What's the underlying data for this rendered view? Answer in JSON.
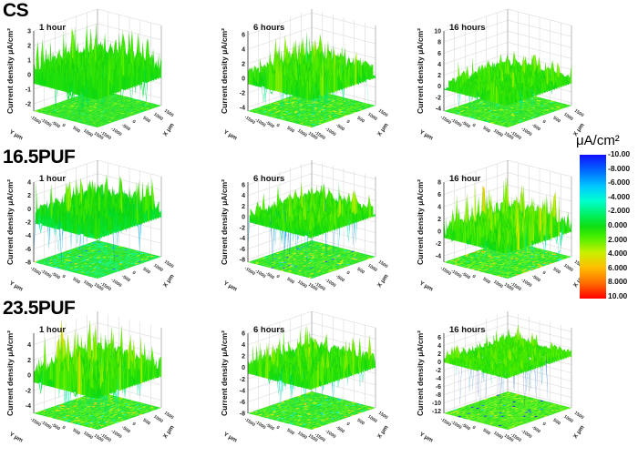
{
  "row_labels": [
    "CS",
    "16.5PUF",
    "23.5PUF"
  ],
  "colorbar": {
    "unit": "μA/cm²",
    "ticks": [
      "-10.00",
      "-8.000",
      "-6.000",
      "-4.000",
      "-2.000",
      "0.000",
      "2.000",
      "4.000",
      "6.000",
      "8.000",
      "10.00"
    ],
    "colors": {
      "min": "#1010ff",
      "zero": "#10dd10",
      "max": "#ff0000"
    }
  },
  "chart_data": {
    "type": "surface",
    "grid": true,
    "colorscale_range": [
      -10,
      10
    ],
    "panels": [
      {
        "row": "CS",
        "title": "1 hour",
        "zlabel": "Current density  μA/cm²",
        "xlabel": "X μm",
        "ylabel": "Y μm",
        "zticks": [
          "3",
          "2",
          "1",
          "0",
          "-1",
          "-2"
        ],
        "zlim": [
          -2.5,
          3
        ],
        "xticks": [
          "1500",
          "1000",
          "500",
          "0",
          "-500",
          "-1000",
          "-1500"
        ],
        "yticks": [
          "-1500",
          "-1000",
          "-500",
          "0",
          "500",
          "1000",
          "1500"
        ]
      },
      {
        "row": "CS",
        "title": "6 hours",
        "zlabel": "Current density  μA/cm²",
        "xlabel": "X μm",
        "ylabel": "Y μm",
        "zticks": [
          "6",
          "4",
          "2",
          "0",
          "-2",
          "-4"
        ],
        "zlim": [
          -4.5,
          6.5
        ],
        "xticks": [
          "1500",
          "1000",
          "500",
          "0",
          "-500",
          "-1000",
          "-1500"
        ],
        "yticks": [
          "-1500",
          "-1000",
          "-500",
          "0",
          "500",
          "1000",
          "1500"
        ]
      },
      {
        "row": "CS",
        "title": "16 hours",
        "zlabel": "Current density  μA/cm²",
        "xlabel": "X μm",
        "ylabel": "Y μm",
        "zticks": [
          "10",
          "8",
          "6",
          "4",
          "2",
          "0",
          "-2",
          "-4"
        ],
        "zlim": [
          -4.5,
          10
        ],
        "xticks": [
          "1500",
          "1000",
          "500",
          "0",
          "-500",
          "-1000",
          "-1500"
        ],
        "yticks": [
          "-1500",
          "-1000",
          "-500",
          "0",
          "500",
          "1000",
          "1500"
        ]
      },
      {
        "row": "16.5PUF",
        "title": "1 hour",
        "zlabel": "Current density  μA/cm²",
        "xlabel": "X μm",
        "ylabel": "Y μm",
        "zticks": [
          "4",
          "2",
          "0",
          "-2",
          "-4",
          "-6",
          "-8"
        ],
        "zlim": [
          -8,
          4
        ],
        "xticks": [
          "1500",
          "1000",
          "500",
          "0",
          "-500",
          "-1000",
          "-1500"
        ],
        "yticks": [
          "-1500",
          "-1000",
          "-500",
          "0",
          "500",
          "1000",
          "1500"
        ]
      },
      {
        "row": "16.5PUF",
        "title": "6 hours",
        "zlabel": "Current density  μA/cm²",
        "xlabel": "X μm",
        "ylabel": "Y μm",
        "zticks": [
          "6",
          "4",
          "2",
          "0",
          "-2",
          "-4",
          "-6",
          "-8"
        ],
        "zlim": [
          -8.5,
          6.5
        ],
        "xticks": [
          "1500",
          "1000",
          "500",
          "0",
          "-500",
          "-1000",
          "-1500"
        ],
        "yticks": [
          "-1500",
          "-1000",
          "-500",
          "0",
          "500",
          "1000",
          "1500"
        ]
      },
      {
        "row": "16.5PUF",
        "title": "16 hour",
        "zlabel": "Current density  μA/cm²",
        "xlabel": "X μm",
        "ylabel": "Y μm",
        "zticks": [
          "8",
          "6",
          "4",
          "2",
          "0",
          "-2",
          "-4"
        ],
        "zlim": [
          -5,
          8
        ],
        "xticks": [
          "1500",
          "1000",
          "500",
          "0",
          "-500",
          "-1000",
          "-1500"
        ],
        "yticks": [
          "-1500",
          "-1000",
          "-500",
          "0",
          "500",
          "1000",
          "1500"
        ]
      },
      {
        "row": "23.5PUF",
        "title": "1 hour",
        "zlabel": "Current density  μA/cm²",
        "xlabel": "X μm",
        "ylabel": "Y μm",
        "zticks": [
          "4",
          "2",
          "0",
          "-2",
          "-4"
        ],
        "zlim": [
          -5,
          5.5
        ],
        "xticks": [
          "1500",
          "1000",
          "500",
          "0",
          "-500",
          "-1000",
          "-1500"
        ],
        "yticks": [
          "-1500",
          "-1000",
          "-500",
          "0",
          "500",
          "1000",
          "1500"
        ]
      },
      {
        "row": "23.5PUF",
        "title": "6 hours",
        "zlabel": "Current density  μA/cm²",
        "xlabel": "X μm",
        "ylabel": "Y μm",
        "zticks": [
          "6",
          "4",
          "2",
          "0",
          "-2",
          "-4",
          "-6",
          "-8"
        ],
        "zlim": [
          -8,
          6
        ],
        "xticks": [
          "1500",
          "1000",
          "500",
          "0",
          "-500",
          "-1000",
          "-1500"
        ],
        "yticks": [
          "-1500",
          "-1000",
          "-500",
          "0",
          "500",
          "1000",
          "1500"
        ]
      },
      {
        "row": "23.5PUF",
        "title": "16 hours",
        "zlabel": "Current density  μA/cm²",
        "xlabel": "X μm",
        "ylabel": "Y μm",
        "zticks": [
          "6",
          "4",
          "2",
          "0",
          "-2",
          "-4",
          "-6",
          "-8",
          "-10",
          "-12"
        ],
        "zlim": [
          -12.5,
          7
        ],
        "xticks": [
          "1500",
          "1000",
          "500",
          "0",
          "-500",
          "-1000",
          "-1500"
        ],
        "yticks": [
          "-1500",
          "-1000",
          "-500",
          "0",
          "500",
          "1000",
          "1500"
        ]
      }
    ]
  }
}
